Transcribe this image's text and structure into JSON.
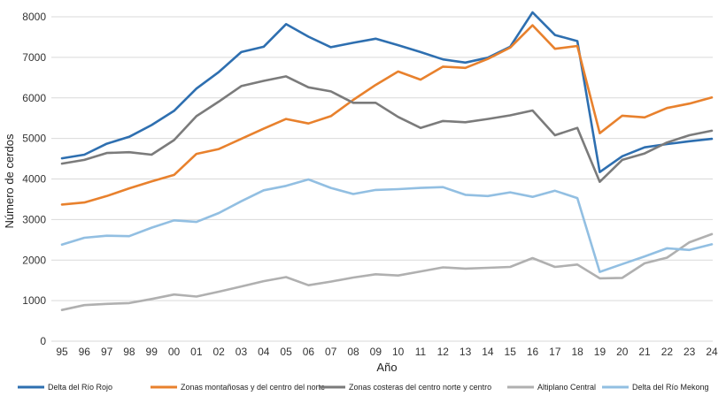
{
  "chart_data": {
    "type": "line",
    "title": "",
    "xlabel": "Año",
    "ylabel": "Número de cerdos",
    "ylim": [
      0,
      8000
    ],
    "yticks": [
      0,
      1000,
      2000,
      3000,
      4000,
      5000,
      6000,
      7000,
      8000
    ],
    "grid": true,
    "legend_position": "bottom",
    "categories": [
      "95",
      "96",
      "97",
      "98",
      "99",
      "00",
      "01",
      "02",
      "03",
      "04",
      "05",
      "06",
      "07",
      "08",
      "09",
      "10",
      "11",
      "12",
      "13",
      "14",
      "15",
      "16",
      "17",
      "18",
      "19",
      "20",
      "21",
      "22",
      "23",
      "24"
    ],
    "series": [
      {
        "name": "Delta del Río Rojo",
        "color": "#2e6fb0",
        "values": [
          4510,
          4600,
          4870,
          5040,
          5330,
          5680,
          6230,
          6640,
          7130,
          7260,
          7820,
          7510,
          7250,
          7360,
          7460,
          7300,
          7130,
          6950,
          6870,
          6990,
          7260,
          8110,
          7550,
          7400,
          4170,
          4560,
          4780,
          4860,
          4930,
          4990
        ]
      },
      {
        "name": "Zonas montañosas y del centro del norte",
        "color": "#e8812d",
        "values": [
          3370,
          3420,
          3580,
          3770,
          3940,
          4100,
          4620,
          4740,
          4990,
          5240,
          5480,
          5370,
          5550,
          5950,
          6320,
          6650,
          6450,
          6770,
          6740,
          6960,
          7240,
          7790,
          7210,
          7280,
          5130,
          5560,
          5520,
          5750,
          5860,
          6010
        ]
      },
      {
        "name": "Zonas costeras del centro norte y centro",
        "color": "#7b7b7b",
        "values": [
          4380,
          4470,
          4640,
          4660,
          4600,
          4960,
          5550,
          5910,
          6290,
          6420,
          6530,
          6260,
          6160,
          5880,
          5880,
          5530,
          5260,
          5430,
          5400,
          5480,
          5570,
          5690,
          5080,
          5260,
          3930,
          4470,
          4630,
          4900,
          5080,
          5190
        ]
      },
      {
        "name": "Altiplano Central",
        "color": "#b0b0b0",
        "values": [
          770,
          890,
          920,
          940,
          1040,
          1150,
          1100,
          1220,
          1350,
          1480,
          1580,
          1380,
          1470,
          1570,
          1650,
          1620,
          1720,
          1820,
          1790,
          1810,
          1830,
          2050,
          1830,
          1890,
          1550,
          1560,
          1920,
          2060,
          2440,
          2640
        ]
      },
      {
        "name": "Delta del Río Mekong",
        "color": "#92bfe2",
        "values": [
          2380,
          2550,
          2600,
          2590,
          2800,
          2980,
          2940,
          3160,
          3450,
          3720,
          3830,
          3990,
          3780,
          3630,
          3730,
          3750,
          3780,
          3800,
          3610,
          3580,
          3670,
          3560,
          3710,
          3530,
          1710,
          1900,
          2090,
          2290,
          2250,
          2390
        ]
      }
    ]
  }
}
